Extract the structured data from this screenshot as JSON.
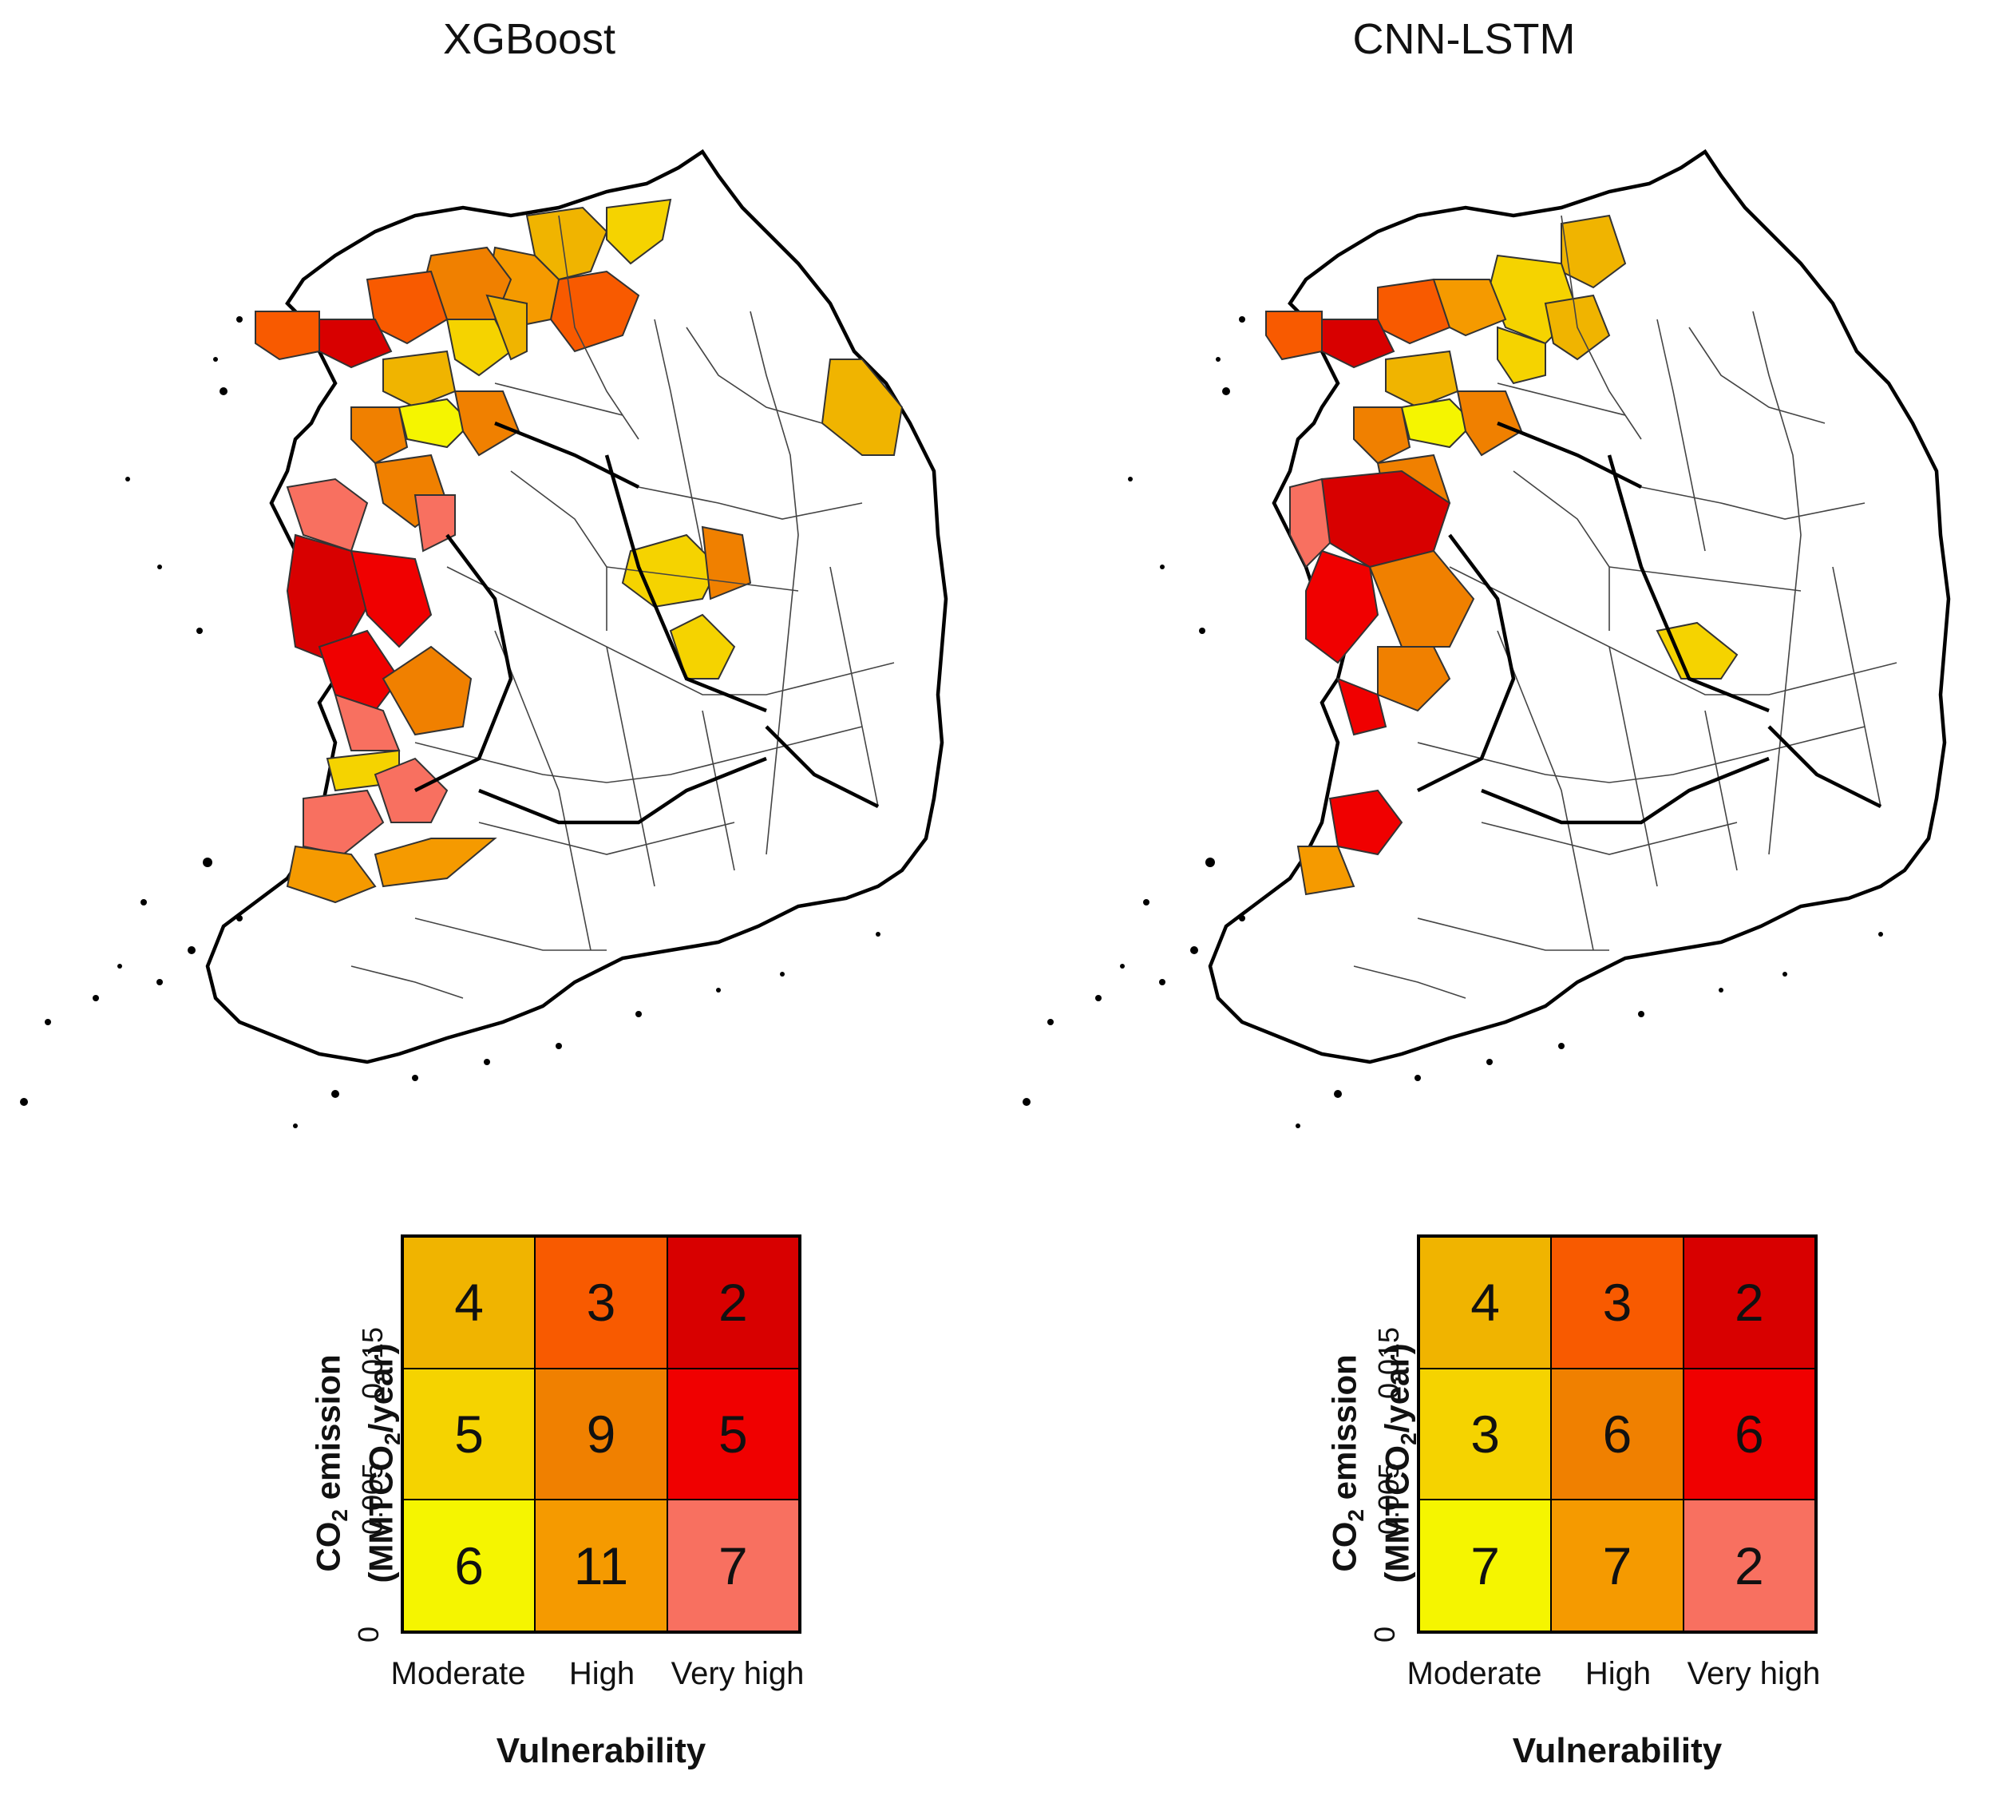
{
  "panels": [
    {
      "title": "XGBoost",
      "legend": {
        "cells": [
          [
            "4",
            "3",
            "2"
          ],
          [
            "5",
            "9",
            "5"
          ],
          [
            "6",
            "11",
            "7"
          ]
        ],
        "colors": [
          [
            "#F0B400",
            "#F85A00",
            "#D80000"
          ],
          [
            "#F5D300",
            "#F08000",
            "#F00000"
          ],
          [
            "#F5F500",
            "#F59A00",
            "#F87060"
          ]
        ]
      }
    },
    {
      "title": "CNN-LSTM",
      "legend": {
        "cells": [
          [
            "4",
            "3",
            "2"
          ],
          [
            "3",
            "6",
            "6"
          ],
          [
            "7",
            "7",
            "2"
          ]
        ],
        "colors": [
          [
            "#F0B400",
            "#F85A00",
            "#D80000"
          ],
          [
            "#F5D300",
            "#F08000",
            "#F00000"
          ],
          [
            "#F5F500",
            "#F59A00",
            "#F87060"
          ]
        ]
      }
    }
  ],
  "axis": {
    "y_ticks": [
      "0",
      "0.005",
      "0.015"
    ],
    "x_ticks": [
      "Moderate",
      "High",
      "Very high"
    ],
    "x_label": "Vulnerability",
    "y_label_line1_pre": "CO",
    "y_label_line1_sub": "2",
    "y_label_line1_post": " emission",
    "y_label_line2_pre": "(MMTCO",
    "y_label_line2_sub": "2",
    "y_label_line2_post": "/year)"
  },
  "palette": {
    "land": "#FFFFFF",
    "border": "#000000"
  }
}
